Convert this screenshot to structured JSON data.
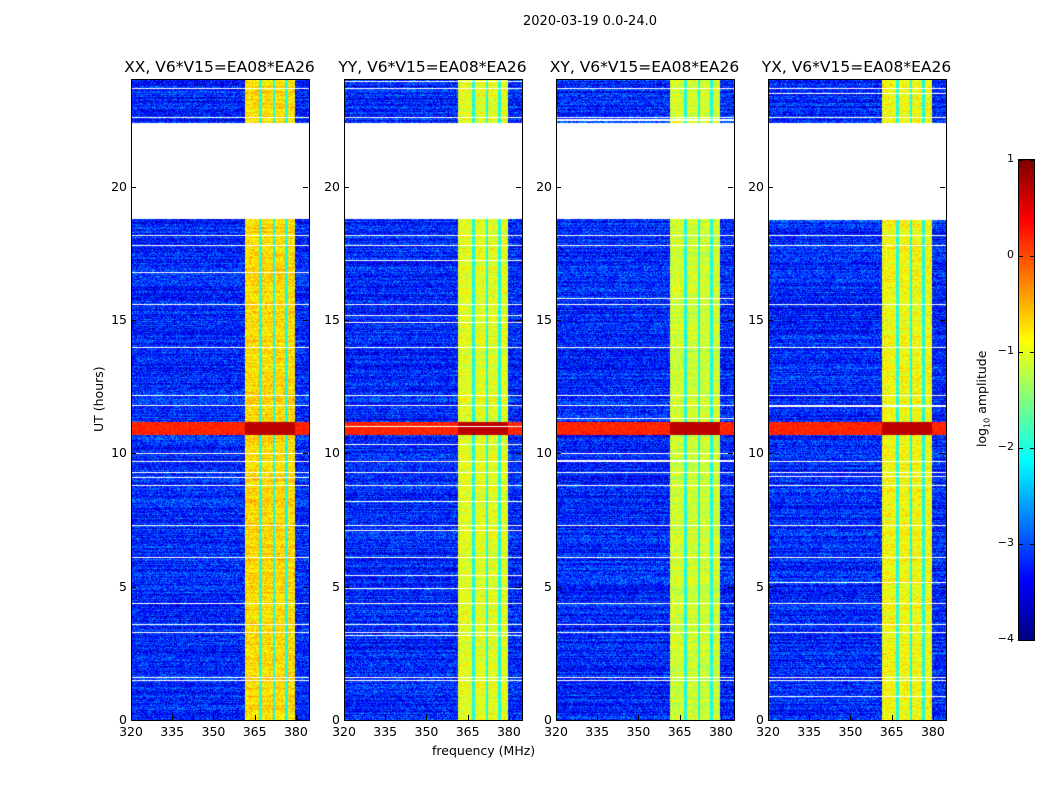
{
  "suptitle": "2020-03-19 0.0-24.0",
  "chart_data": {
    "type": "heatmap",
    "title": "2020-03-19 0.0-24.0",
    "xlabel": "frequency (MHz)",
    "ylabel": "UT (hours)",
    "xlim": [
      320,
      384.4
    ],
    "ylim": [
      0,
      24
    ],
    "xticks": [
      "320",
      "335",
      "350",
      "365",
      "380"
    ],
    "xtick_values": [
      320,
      335,
      350,
      365,
      380
    ],
    "yticks": [
      "0",
      "5",
      "10",
      "15",
      "20"
    ],
    "ytick_values": [
      0,
      5,
      10,
      15,
      20
    ],
    "panels": [
      {
        "title": "XX, V6*V15=EA08*EA26",
        "band_level": -0.7
      },
      {
        "title": "YY, V6*V15=EA08*EA26",
        "band_level": -1.0
      },
      {
        "title": "XY, V6*V15=EA08*EA26",
        "band_level": -1.1
      },
      {
        "title": "YX, V6*V15=EA08*EA26",
        "band_level": -0.9
      }
    ],
    "background_level": -3.2,
    "rfi_band_mhz": [
      361,
      379
    ],
    "rfi_band_gaps_mhz": [
      366.5,
      371.5,
      376
    ],
    "strong_rfi_hours": [
      10.7,
      11.2
    ],
    "no_data_hours": [
      [
        18.8,
        22.4
      ]
    ],
    "flagged_rows_hours": [
      1.5,
      1.6,
      3.3,
      3.6,
      4.4,
      6.1,
      7.3,
      8.8,
      9.3,
      9.7,
      11.8,
      12.2,
      14.0,
      15.6,
      17.8,
      18.2,
      22.6,
      23.7
    ],
    "colorbar": {
      "label": "log10 amplitude",
      "label_main": "log",
      "label_sub": "10",
      "label_rest": " amplitude",
      "range": [
        -4,
        1
      ],
      "ticks": [
        "1",
        "0",
        "−1",
        "−2",
        "−3",
        "−4"
      ],
      "tick_values": [
        1,
        0,
        -1,
        -2,
        -3,
        -4
      ],
      "colormap": "jet"
    }
  }
}
